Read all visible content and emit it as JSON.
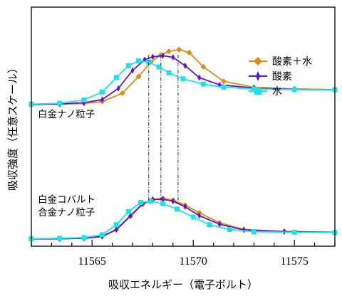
{
  "chart_data": {
    "type": "line",
    "xlabel": "吸収エネルギー（電子ボルト）",
    "ylabel": "吸収強度（任意スケール）",
    "xlim": [
      11562,
      11577
    ],
    "ylim": [
      0,
      1
    ],
    "x_ticks": [
      11565,
      11570,
      11575
    ],
    "x_tick_labels": [
      "11565",
      "11570",
      "11575"
    ],
    "y_ticks": false,
    "legend": {
      "position": "top-right"
    },
    "annotations": [
      {
        "lines": [
          "白金ナノ粒子"
        ],
        "panel": "upper"
      },
      {
        "lines": [
          "白金コバルト",
          "合金ナノ粒子"
        ],
        "panel": "lower"
      }
    ],
    "series": [
      {
        "name": "酸素＋水",
        "color": "#e08a14",
        "marker": "diamond",
        "panel": "upper",
        "x": [
          11562.0,
          11563.4,
          11564.6,
          11565.5,
          11566.5,
          11567.3,
          11567.9,
          11568.4,
          11568.8,
          11569.3,
          11569.8,
          11570.5,
          11571.5,
          11573.0,
          11575.0,
          11577.0
        ],
        "y": [
          0.593,
          0.594,
          0.597,
          0.605,
          0.64,
          0.71,
          0.77,
          0.8,
          0.815,
          0.822,
          0.81,
          0.75,
          0.69,
          0.665,
          0.658,
          0.655
        ]
      },
      {
        "name": "酸素",
        "color": "#5a14d2",
        "marker": "thin-diamond",
        "panel": "upper",
        "x": [
          11562.0,
          11563.4,
          11564.6,
          11565.5,
          11566.3,
          11567.0,
          11567.6,
          11568.0,
          11568.5,
          11569.0,
          11569.6,
          11570.3,
          11571.3,
          11573.0,
          11575.0,
          11577.0
        ],
        "y": [
          0.593,
          0.595,
          0.6,
          0.613,
          0.66,
          0.735,
          0.78,
          0.792,
          0.797,
          0.79,
          0.755,
          0.705,
          0.675,
          0.662,
          0.656,
          0.654
        ]
      },
      {
        "name": "水",
        "color": "#1ae3ea",
        "marker": "square",
        "panel": "upper",
        "x": [
          11562.0,
          11563.4,
          11564.6,
          11565.5,
          11566.2,
          11566.8,
          11567.3,
          11567.8,
          11568.3,
          11568.8,
          11569.5,
          11570.5,
          11571.5,
          11573.0,
          11575.0,
          11577.0
        ],
        "y": [
          0.594,
          0.598,
          0.612,
          0.645,
          0.705,
          0.755,
          0.775,
          0.77,
          0.75,
          0.725,
          0.7,
          0.678,
          0.665,
          0.658,
          0.655,
          0.654
        ]
      },
      {
        "name": "酸素＋水",
        "color": "#e08a14",
        "marker": "diamond",
        "panel": "lower",
        "x": [
          11562.0,
          11563.4,
          11564.6,
          11565.5,
          11566.2,
          11566.9,
          11567.5,
          11568.0,
          11568.5,
          11569.0,
          11569.6,
          11570.3,
          11571.3,
          11572.5,
          11574.5,
          11577.0
        ],
        "y": [
          0.03,
          0.031,
          0.033,
          0.04,
          0.068,
          0.125,
          0.175,
          0.196,
          0.2,
          0.193,
          0.172,
          0.14,
          0.098,
          0.07,
          0.062,
          0.058
        ]
      },
      {
        "name": "酸素",
        "color": "#5a14d2",
        "marker": "thin-diamond",
        "panel": "lower",
        "x": [
          11562.0,
          11563.4,
          11564.6,
          11565.5,
          11566.2,
          11566.9,
          11567.5,
          11568.0,
          11568.5,
          11569.0,
          11569.6,
          11570.3,
          11571.3,
          11572.5,
          11574.5,
          11577.0
        ],
        "y": [
          0.03,
          0.031,
          0.033,
          0.041,
          0.07,
          0.128,
          0.178,
          0.195,
          0.196,
          0.188,
          0.165,
          0.128,
          0.092,
          0.068,
          0.061,
          0.058
        ]
      },
      {
        "name": "水",
        "color": "#1ae3ea",
        "marker": "square",
        "panel": "lower",
        "x": [
          11562.0,
          11563.4,
          11564.6,
          11565.5,
          11566.2,
          11566.8,
          11567.4,
          11567.9,
          11568.5,
          11569.2,
          11570.0,
          11570.8,
          11571.8,
          11573.0,
          11575.0,
          11577.0
        ],
        "y": [
          0.031,
          0.033,
          0.036,
          0.048,
          0.09,
          0.145,
          0.183,
          0.188,
          0.178,
          0.155,
          0.122,
          0.09,
          0.07,
          0.061,
          0.058,
          0.057
        ]
      }
    ],
    "guide_lines_x": [
      11567.8,
      11568.4,
      11569.25
    ]
  }
}
